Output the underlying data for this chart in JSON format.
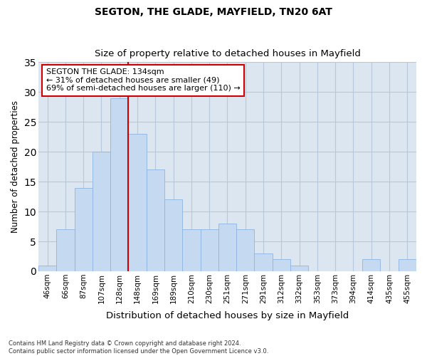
{
  "title1": "SEGTON, THE GLADE, MAYFIELD, TN20 6AT",
  "title2": "Size of property relative to detached houses in Mayfield",
  "xlabel": "Distribution of detached houses by size in Mayfield",
  "ylabel": "Number of detached properties",
  "categories": [
    "46sqm",
    "66sqm",
    "87sqm",
    "107sqm",
    "128sqm",
    "148sqm",
    "169sqm",
    "189sqm",
    "210sqm",
    "230sqm",
    "251sqm",
    "271sqm",
    "291sqm",
    "312sqm",
    "332sqm",
    "353sqm",
    "373sqm",
    "394sqm",
    "414sqm",
    "435sqm",
    "455sqm"
  ],
  "values": [
    1,
    7,
    14,
    20,
    29,
    23,
    17,
    12,
    7,
    7,
    8,
    7,
    3,
    2,
    1,
    0,
    0,
    0,
    2,
    0,
    2
  ],
  "bar_color": "#c5d9f1",
  "bar_edge_color": "#8db4e2",
  "marker_bin_index": 4,
  "marker_color": "#cc0000",
  "annotation_text": "SEGTON THE GLADE: 134sqm\n← 31% of detached houses are smaller (49)\n69% of semi-detached houses are larger (110) →",
  "annotation_box_color": "#ffffff",
  "annotation_box_edge": "#cc0000",
  "ylim": [
    0,
    35
  ],
  "yticks": [
    0,
    5,
    10,
    15,
    20,
    25,
    30,
    35
  ],
  "grid_color": "#b8c8dc",
  "bg_color": "#dce6f1",
  "fig_bg_color": "#ffffff",
  "footnote": "Contains HM Land Registry data © Crown copyright and database right 2024.\nContains public sector information licensed under the Open Government Licence v3.0."
}
